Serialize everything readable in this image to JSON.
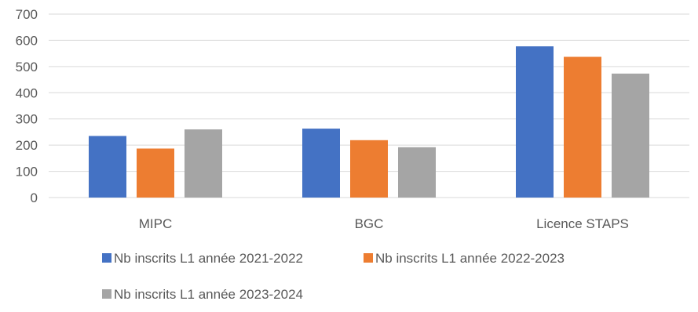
{
  "chart_data": {
    "type": "bar",
    "title": "",
    "xlabel": "",
    "ylabel": "",
    "categories": [
      "MIPC",
      "BGC",
      "Licence STAPS"
    ],
    "series": [
      {
        "name": "Nb inscrits L1 année 2021-2022",
        "color": "#4472C4",
        "values": [
          235,
          263,
          577
        ]
      },
      {
        "name": "Nb inscrits L1 année 2022-2023",
        "color": "#ED7D31",
        "values": [
          187,
          219,
          537
        ]
      },
      {
        "name": "Nb inscrits L1 année 2023-2024",
        "color": "#A5A5A5",
        "values": [
          260,
          192,
          473
        ]
      }
    ],
    "ylim": [
      0,
      700
    ],
    "yticks": [
      "0",
      "100",
      "200",
      "300",
      "400",
      "500",
      "600",
      "700"
    ],
    "grid": true,
    "legend_position": "bottom"
  }
}
